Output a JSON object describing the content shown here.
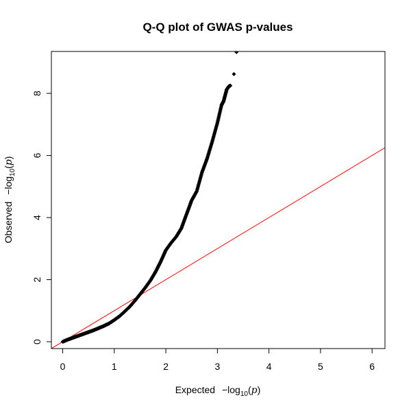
{
  "chart_data": {
    "type": "scatter",
    "title": "Q-Q plot of GWAS p-values",
    "xlabel": {
      "prefix": "Expected",
      "minus": "−",
      "log": "log",
      "sub": "10",
      "open": "(",
      "var": "p",
      "close": ")"
    },
    "ylabel": {
      "prefix": "Observed",
      "minus": "−",
      "log": "log",
      "sub": "10",
      "open": "(",
      "var": "p",
      "close": ")"
    },
    "xlim": [
      -0.22,
      6.25
    ],
    "ylim": [
      -0.22,
      9.35
    ],
    "xticks": [
      0,
      1,
      2,
      3,
      4,
      5,
      6
    ],
    "yticks": [
      0,
      2,
      4,
      6,
      8
    ],
    "grid": false,
    "marker_color": "#000000",
    "reference_line": {
      "slope": 1,
      "intercept": 0,
      "color": "#ff0000"
    },
    "curve": [
      [
        0.0,
        0.0
      ],
      [
        0.1,
        0.07
      ],
      [
        0.2,
        0.13
      ],
      [
        0.3,
        0.19
      ],
      [
        0.4,
        0.25
      ],
      [
        0.5,
        0.31
      ],
      [
        0.6,
        0.37
      ],
      [
        0.7,
        0.44
      ],
      [
        0.8,
        0.51
      ],
      [
        0.9,
        0.59
      ],
      [
        1.0,
        0.7
      ],
      [
        1.1,
        0.82
      ],
      [
        1.2,
        0.97
      ],
      [
        1.3,
        1.13
      ],
      [
        1.4,
        1.32
      ],
      [
        1.5,
        1.53
      ],
      [
        1.6,
        1.74
      ],
      [
        1.7,
        1.97
      ],
      [
        1.8,
        2.25
      ],
      [
        1.9,
        2.58
      ],
      [
        2.0,
        2.95
      ],
      [
        2.1,
        3.18
      ],
      [
        2.2,
        3.38
      ],
      [
        2.3,
        3.65
      ],
      [
        2.4,
        4.1
      ],
      [
        2.5,
        4.55
      ],
      [
        2.6,
        4.85
      ],
      [
        2.7,
        5.45
      ],
      [
        2.8,
        5.9
      ],
      [
        2.9,
        6.45
      ],
      [
        3.0,
        7.05
      ],
      [
        3.08,
        7.62
      ],
      [
        3.12,
        7.75
      ],
      [
        3.18,
        8.12
      ],
      [
        3.22,
        8.22
      ],
      [
        3.25,
        8.25
      ]
    ],
    "tail_points": [
      [
        3.32,
        8.62
      ],
      [
        3.37,
        9.33
      ]
    ]
  }
}
